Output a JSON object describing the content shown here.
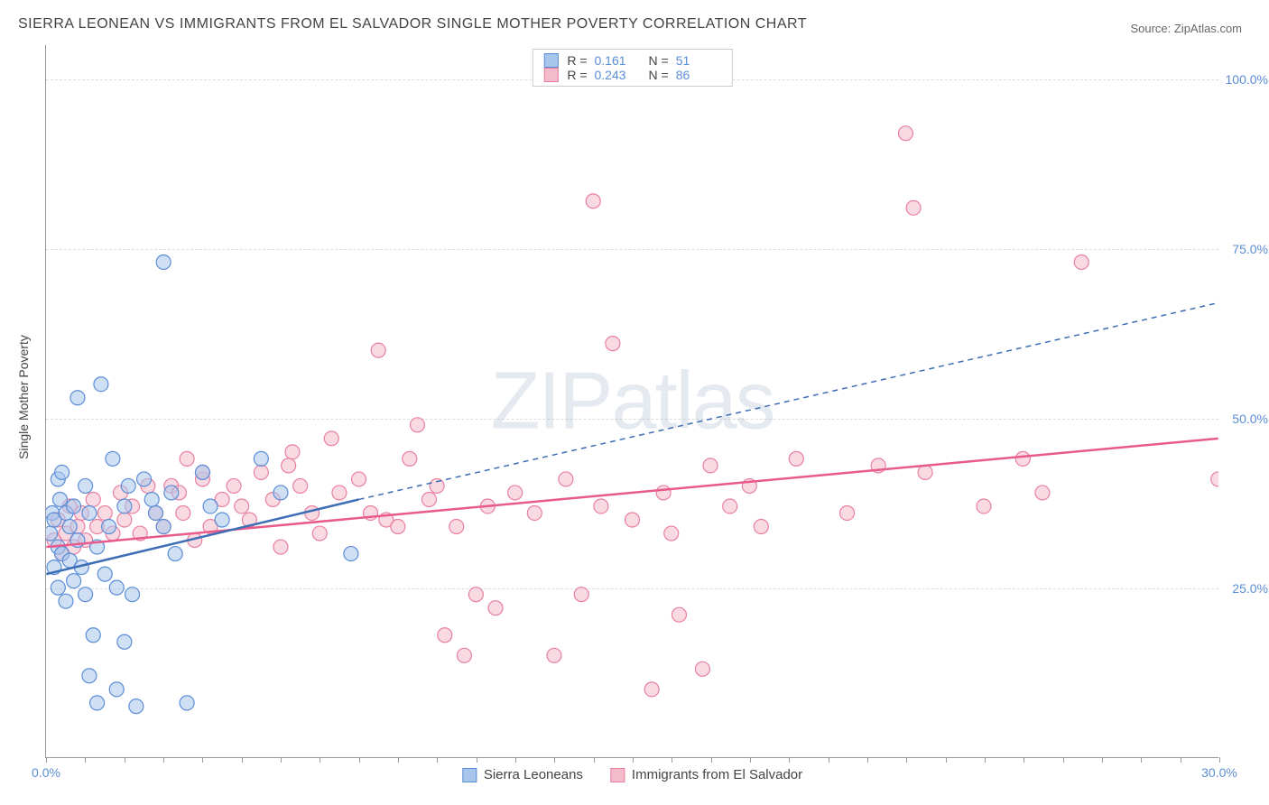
{
  "title": "SIERRA LEONEAN VS IMMIGRANTS FROM EL SALVADOR SINGLE MOTHER POVERTY CORRELATION CHART",
  "source_label": "Source: ZipAtlas.com",
  "ylabel": "Single Mother Poverty",
  "watermark": "ZIPatlas",
  "chart": {
    "type": "scatter",
    "xlim": [
      0,
      30
    ],
    "ylim": [
      0,
      105
    ],
    "xtick_labels": [
      "0.0%",
      "30.0%"
    ],
    "xtick_positions": [
      0,
      30
    ],
    "ytick_labels": [
      "25.0%",
      "50.0%",
      "75.0%",
      "100.0%"
    ],
    "ytick_positions": [
      25,
      50,
      75,
      100
    ],
    "background_color": "#ffffff",
    "grid_color": "#dddddd",
    "marker_radius": 8,
    "marker_opacity": 0.55,
    "series": [
      {
        "name": "Sierra Leoneans",
        "label": "Sierra Leoneans",
        "color_fill": "#a8c6ec",
        "color_stroke": "#5b8dd6",
        "R": "0.161",
        "N": "51",
        "trend": {
          "x1": 0,
          "y1": 27,
          "x2": 8,
          "y2": 38,
          "dash_x2": 30,
          "dash_y2": 67,
          "color": "#3d6db5",
          "width": 2.5
        },
        "points": [
          [
            0.1,
            33
          ],
          [
            0.15,
            36
          ],
          [
            0.2,
            28
          ],
          [
            0.2,
            35
          ],
          [
            0.3,
            41
          ],
          [
            0.3,
            31
          ],
          [
            0.3,
            25
          ],
          [
            0.35,
            38
          ],
          [
            0.4,
            42
          ],
          [
            0.4,
            30
          ],
          [
            0.5,
            36
          ],
          [
            0.5,
            23
          ],
          [
            0.6,
            29
          ],
          [
            0.6,
            34
          ],
          [
            0.7,
            37
          ],
          [
            0.7,
            26
          ],
          [
            0.8,
            53
          ],
          [
            0.8,
            32
          ],
          [
            0.9,
            28
          ],
          [
            1.0,
            40
          ],
          [
            1.0,
            24
          ],
          [
            1.1,
            12
          ],
          [
            1.1,
            36
          ],
          [
            1.2,
            18
          ],
          [
            1.3,
            8
          ],
          [
            1.3,
            31
          ],
          [
            1.4,
            55
          ],
          [
            1.5,
            27
          ],
          [
            1.6,
            34
          ],
          [
            1.7,
            44
          ],
          [
            1.8,
            10
          ],
          [
            1.8,
            25
          ],
          [
            2.0,
            17
          ],
          [
            2.0,
            37
          ],
          [
            2.1,
            40
          ],
          [
            2.2,
            24
          ],
          [
            2.3,
            7.5
          ],
          [
            2.5,
            41
          ],
          [
            2.7,
            38
          ],
          [
            2.8,
            36
          ],
          [
            3.0,
            34
          ],
          [
            3.0,
            73
          ],
          [
            3.2,
            39
          ],
          [
            3.3,
            30
          ],
          [
            3.6,
            8
          ],
          [
            4.0,
            42
          ],
          [
            4.2,
            37
          ],
          [
            4.5,
            35
          ],
          [
            5.5,
            44
          ],
          [
            6.0,
            39
          ],
          [
            7.8,
            30
          ]
        ]
      },
      {
        "name": "Immigrants from El Salvador",
        "label": "Immigrants from El Salvador",
        "color_fill": "#f4bccb",
        "color_stroke": "#e87fa0",
        "R": "0.243",
        "N": "86",
        "trend": {
          "x1": 0,
          "y1": 31,
          "x2": 30,
          "y2": 47,
          "color": "#e85a8a",
          "width": 2.5
        },
        "points": [
          [
            0.2,
            32
          ],
          [
            0.3,
            35
          ],
          [
            0.4,
            30
          ],
          [
            0.5,
            33
          ],
          [
            0.6,
            37
          ],
          [
            0.7,
            31
          ],
          [
            0.8,
            34
          ],
          [
            0.9,
            36
          ],
          [
            1.0,
            32
          ],
          [
            1.2,
            38
          ],
          [
            1.3,
            34
          ],
          [
            1.5,
            36
          ],
          [
            1.7,
            33
          ],
          [
            1.9,
            39
          ],
          [
            2.0,
            35
          ],
          [
            2.2,
            37
          ],
          [
            2.4,
            33
          ],
          [
            2.6,
            40
          ],
          [
            2.8,
            36
          ],
          [
            3.0,
            34
          ],
          [
            3.2,
            40
          ],
          [
            3.4,
            39
          ],
          [
            3.5,
            36
          ],
          [
            3.6,
            44
          ],
          [
            3.8,
            32
          ],
          [
            4.0,
            41
          ],
          [
            4.2,
            34
          ],
          [
            4.5,
            38
          ],
          [
            4.8,
            40
          ],
          [
            5.0,
            37
          ],
          [
            5.2,
            35
          ],
          [
            5.5,
            42
          ],
          [
            5.8,
            38
          ],
          [
            6.0,
            31
          ],
          [
            6.3,
            45
          ],
          [
            6.5,
            40
          ],
          [
            6.8,
            36
          ],
          [
            7.0,
            33
          ],
          [
            7.3,
            47
          ],
          [
            7.5,
            39
          ],
          [
            8.0,
            41
          ],
          [
            8.3,
            36
          ],
          [
            8.5,
            60
          ],
          [
            8.7,
            35
          ],
          [
            9.0,
            34
          ],
          [
            9.3,
            44
          ],
          [
            9.5,
            49
          ],
          [
            9.8,
            38
          ],
          [
            10.0,
            40
          ],
          [
            10.2,
            18
          ],
          [
            10.5,
            34
          ],
          [
            10.7,
            15
          ],
          [
            11.0,
            24
          ],
          [
            11.3,
            37
          ],
          [
            11.5,
            22
          ],
          [
            12.0,
            39
          ],
          [
            12.5,
            36
          ],
          [
            13.0,
            15
          ],
          [
            13.3,
            41
          ],
          [
            13.7,
            24
          ],
          [
            14.0,
            82
          ],
          [
            14.2,
            37
          ],
          [
            14.5,
            61
          ],
          [
            15.0,
            35
          ],
          [
            15.5,
            10
          ],
          [
            15.8,
            39
          ],
          [
            16.0,
            33
          ],
          [
            16.2,
            21
          ],
          [
            16.8,
            13
          ],
          [
            17.0,
            43
          ],
          [
            17.5,
            37
          ],
          [
            18.0,
            40
          ],
          [
            18.3,
            34
          ],
          [
            19.2,
            44
          ],
          [
            20.5,
            36
          ],
          [
            21.3,
            43
          ],
          [
            22.0,
            92
          ],
          [
            22.2,
            81
          ],
          [
            22.5,
            42
          ],
          [
            24.0,
            37
          ],
          [
            25.0,
            44
          ],
          [
            25.5,
            39
          ],
          [
            26.5,
            73
          ],
          [
            30.0,
            41
          ],
          [
            4.0,
            42
          ],
          [
            6.2,
            43
          ]
        ]
      }
    ]
  },
  "legend_items": [
    {
      "label": "Sierra Leoneans",
      "fill": "#a8c6ec",
      "stroke": "#5b8dd6"
    },
    {
      "label": "Immigrants from El Salvador",
      "fill": "#f4bccb",
      "stroke": "#e87fa0"
    }
  ]
}
